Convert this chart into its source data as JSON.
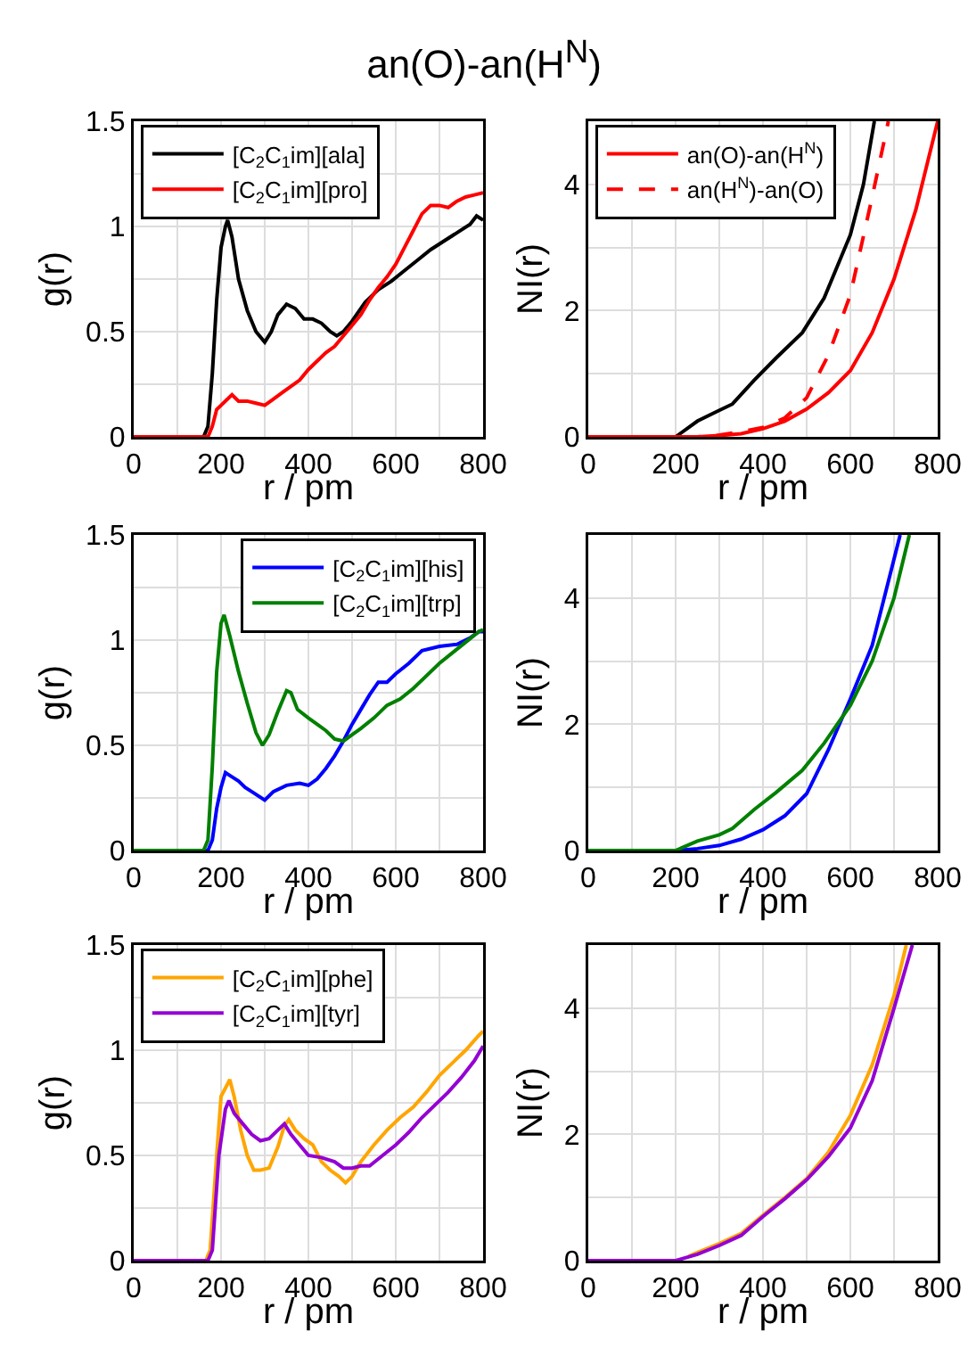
{
  "chart_data": [
    {
      "type": "line",
      "title": "an(O)-an(H$^{N}$)",
      "xlabel": "r / pm",
      "ylabel": "g(r)",
      "xlim": [
        0,
        800
      ],
      "ylim": [
        0,
        1.5
      ],
      "xticks": [
        0,
        {
          "value": 100,
          "label": null
        },
        200,
        {
          "value": 300,
          "label": null
        },
        400,
        {
          "value": 500,
          "label": null
        },
        600,
        {
          "value": 700,
          "label": null
        },
        800
      ],
      "yticks": [
        0,
        {
          "value": 0.25,
          "label": null
        },
        0.5,
        {
          "value": 0.75,
          "label": null
        },
        1,
        {
          "value": 1.25,
          "label": null
        },
        1.5
      ],
      "grid": true,
      "legend": "top left",
      "line_style": "solid",
      "series": [
        {
          "name": "[C$_{2}$C$_{1}$im][ala]",
          "color": "#000000",
          "x": [
            0,
            160,
            170,
            180,
            190,
            200,
            210,
            215,
            225,
            240,
            260,
            280,
            300,
            315,
            330,
            350,
            370,
            390,
            410,
            430,
            450,
            465,
            480,
            500,
            530,
            560,
            590,
            620,
            650,
            680,
            710,
            740,
            770,
            785,
            800
          ],
          "values": [
            0,
            0,
            0.05,
            0.3,
            0.65,
            0.9,
            1.0,
            1.03,
            0.95,
            0.75,
            0.6,
            0.5,
            0.45,
            0.5,
            0.58,
            0.63,
            0.61,
            0.56,
            0.56,
            0.54,
            0.5,
            0.48,
            0.5,
            0.55,
            0.64,
            0.7,
            0.74,
            0.79,
            0.84,
            0.89,
            0.93,
            0.97,
            1.01,
            1.05,
            1.03
          ]
        },
        {
          "name": "[C$_{2}$C$_{1}$im][pro]",
          "color": "#ff0000",
          "x": [
            0,
            170,
            180,
            190,
            200,
            215,
            225,
            240,
            260,
            280,
            300,
            320,
            340,
            360,
            380,
            400,
            420,
            440,
            460,
            480,
            500,
            520,
            540,
            560,
            580,
            600,
            620,
            640,
            660,
            680,
            700,
            720,
            740,
            760,
            780,
            800
          ],
          "values": [
            0,
            0,
            0.05,
            0.13,
            0.15,
            0.18,
            0.2,
            0.17,
            0.17,
            0.16,
            0.15,
            0.18,
            0.21,
            0.24,
            0.27,
            0.32,
            0.36,
            0.4,
            0.43,
            0.48,
            0.53,
            0.58,
            0.65,
            0.71,
            0.76,
            0.82,
            0.9,
            0.98,
            1.06,
            1.1,
            1.1,
            1.09,
            1.12,
            1.14,
            1.15,
            1.16
          ]
        }
      ]
    },
    {
      "type": "line",
      "xlabel": "r / pm",
      "ylabel": "NI(r)",
      "xlim": [
        0,
        800
      ],
      "ylim": [
        0,
        5
      ],
      "xticks": [
        0,
        {
          "value": 100,
          "label": null
        },
        200,
        {
          "value": 300,
          "label": null
        },
        400,
        {
          "value": 500,
          "label": null
        },
        600,
        {
          "value": 700,
          "label": null
        },
        800
      ],
      "yticks": [
        0,
        {
          "value": 1,
          "label": null
        },
        2,
        {
          "value": 3,
          "label": null
        },
        4,
        {
          "value": 5,
          "label": null
        }
      ],
      "grid": true,
      "legend": "top left",
      "line_style": "solid",
      "series": [
        {
          "color": "#000000",
          "x": [
            0,
            200,
            250,
            300,
            330,
            380,
            430,
            490,
            540,
            600,
            630,
            655
          ],
          "values": [
            0,
            0,
            0.25,
            0.42,
            0.52,
            0.9,
            1.25,
            1.65,
            2.2,
            3.2,
            4.0,
            5
          ]
        },
        {
          "name": "an(O)-an(H$^{N}$)",
          "color": "#ff0000",
          "x": [
            0,
            250,
            300,
            350,
            400,
            450,
            500,
            550,
            600,
            650,
            700,
            750,
            800
          ],
          "values": [
            0,
            0,
            0.02,
            0.05,
            0.13,
            0.25,
            0.44,
            0.7,
            1.05,
            1.65,
            2.5,
            3.6,
            5
          ]
        },
        {
          "name": "an(H$^{N}$)-an(O)",
          "color": "#ff0000",
          "line_style": "dashed",
          "x": [
            0,
            250,
            300,
            350,
            400,
            450,
            500,
            550,
            600,
            650,
            687
          ],
          "values": [
            0,
            0,
            0.03,
            0.08,
            0.15,
            0.3,
            0.62,
            1.3,
            2.25,
            3.8,
            5
          ]
        }
      ]
    },
    {
      "type": "line",
      "xlabel": "r / pm",
      "ylabel": "g(r)",
      "xlim": [
        0,
        800
      ],
      "ylim": [
        0,
        1.5
      ],
      "xticks": [
        0,
        {
          "value": 100,
          "label": null
        },
        200,
        {
          "value": 300,
          "label": null
        },
        400,
        {
          "value": 500,
          "label": null
        },
        600,
        {
          "value": 700,
          "label": null
        },
        800
      ],
      "yticks": [
        0,
        {
          "value": 0.25,
          "label": null
        },
        0.5,
        {
          "value": 0.75,
          "label": null
        },
        1,
        {
          "value": 1.25,
          "label": null
        },
        1.5
      ],
      "grid": true,
      "legend": "top right",
      "line_style": "solid",
      "series": [
        {
          "name": "[C$_{2}$C$_{1}$im][his]",
          "color": "#0000ff",
          "x": [
            0,
            170,
            180,
            190,
            200,
            210,
            225,
            240,
            255,
            270,
            300,
            320,
            350,
            380,
            400,
            420,
            440,
            460,
            480,
            500,
            520,
            540,
            560,
            580,
            600,
            630,
            660,
            700,
            740,
            770,
            790,
            800
          ],
          "values": [
            0,
            0,
            0.05,
            0.2,
            0.3,
            0.37,
            0.35,
            0.33,
            0.3,
            0.28,
            0.24,
            0.28,
            0.31,
            0.32,
            0.31,
            0.34,
            0.39,
            0.45,
            0.52,
            0.6,
            0.67,
            0.74,
            0.8,
            0.8,
            0.84,
            0.89,
            0.95,
            0.97,
            0.98,
            1.01,
            1.04,
            1.04
          ]
        },
        {
          "name": "[C$_{2}$C$_{1}$im][trp]",
          "color": "#008000",
          "x": [
            0,
            160,
            170,
            180,
            190,
            200,
            207,
            220,
            240,
            260,
            280,
            295,
            310,
            330,
            350,
            360,
            375,
            400,
            420,
            440,
            460,
            480,
            500,
            520,
            550,
            580,
            610,
            640,
            670,
            700,
            730,
            760,
            790,
            800
          ],
          "values": [
            0,
            0,
            0.05,
            0.4,
            0.85,
            1.08,
            1.12,
            1.02,
            0.85,
            0.7,
            0.56,
            0.5,
            0.55,
            0.66,
            0.76,
            0.75,
            0.67,
            0.63,
            0.6,
            0.57,
            0.53,
            0.52,
            0.55,
            0.58,
            0.63,
            0.69,
            0.72,
            0.77,
            0.83,
            0.89,
            0.94,
            0.99,
            1.04,
            1.05
          ]
        }
      ]
    },
    {
      "type": "line",
      "xlabel": "r / pm",
      "ylabel": "NI(r)",
      "xlim": [
        0,
        800
      ],
      "ylim": [
        0,
        5
      ],
      "xticks": [
        0,
        {
          "value": 100,
          "label": null
        },
        200,
        {
          "value": 300,
          "label": null
        },
        400,
        {
          "value": 500,
          "label": null
        },
        600,
        {
          "value": 700,
          "label": null
        },
        800
      ],
      "yticks": [
        0,
        {
          "value": 1,
          "label": null
        },
        2,
        {
          "value": 3,
          "label": null
        },
        4,
        {
          "value": 5,
          "label": null
        }
      ],
      "grid": true,
      "line_style": "solid",
      "series": [
        {
          "color": "#0000ff",
          "x": [
            0,
            200,
            250,
            300,
            350,
            400,
            450,
            500,
            550,
            600,
            650,
            714
          ],
          "values": [
            0,
            0,
            0.03,
            0.08,
            0.18,
            0.33,
            0.55,
            0.9,
            1.6,
            2.4,
            3.25,
            5
          ]
        },
        {
          "color": "#008000",
          "x": [
            0,
            200,
            250,
            300,
            330,
            380,
            430,
            490,
            540,
            600,
            650,
            700,
            735
          ],
          "values": [
            0,
            0,
            0.15,
            0.25,
            0.35,
            0.65,
            0.92,
            1.27,
            1.7,
            2.3,
            3.0,
            4.0,
            5
          ]
        }
      ]
    },
    {
      "type": "line",
      "xlabel": "r / pm",
      "ylabel": "g(r)",
      "xlim": [
        0,
        800
      ],
      "ylim": [
        0,
        1.5
      ],
      "xticks": [
        0,
        {
          "value": 100,
          "label": null
        },
        200,
        {
          "value": 300,
          "label": null
        },
        400,
        {
          "value": 500,
          "label": null
        },
        600,
        {
          "value": 700,
          "label": null
        },
        800
      ],
      "yticks": [
        0,
        {
          "value": 0.25,
          "label": null
        },
        0.5,
        {
          "value": 0.75,
          "label": null
        },
        1,
        {
          "value": 1.25,
          "label": null
        },
        1.5
      ],
      "grid": true,
      "legend": "top left",
      "line_style": "solid",
      "series": [
        {
          "name": "[C$_{2}$C$_{1}$im][phe]",
          "color": "#ffa500",
          "x": [
            0,
            165,
            175,
            190,
            200,
            210,
            220,
            230,
            245,
            260,
            275,
            290,
            310,
            330,
            345,
            355,
            370,
            390,
            410,
            430,
            450,
            470,
            485,
            500,
            520,
            550,
            580,
            610,
            640,
            670,
            700,
            730,
            760,
            790,
            800
          ],
          "values": [
            0,
            0,
            0.05,
            0.5,
            0.78,
            0.82,
            0.86,
            0.78,
            0.62,
            0.5,
            0.43,
            0.43,
            0.44,
            0.54,
            0.64,
            0.67,
            0.62,
            0.58,
            0.55,
            0.47,
            0.43,
            0.4,
            0.37,
            0.4,
            0.47,
            0.55,
            0.62,
            0.68,
            0.73,
            0.8,
            0.88,
            0.94,
            1.0,
            1.07,
            1.09
          ]
        },
        {
          "name": "[C$_{2}$C$_{1}$im][tyr]",
          "color": "#9400d3",
          "x": [
            0,
            170,
            180,
            195,
            210,
            218,
            230,
            250,
            270,
            290,
            310,
            330,
            345,
            360,
            380,
            400,
            430,
            460,
            480,
            500,
            520,
            540,
            570,
            600,
            630,
            660,
            690,
            720,
            750,
            780,
            800
          ],
          "values": [
            0,
            0,
            0.05,
            0.5,
            0.72,
            0.76,
            0.7,
            0.65,
            0.6,
            0.57,
            0.58,
            0.62,
            0.65,
            0.6,
            0.55,
            0.5,
            0.49,
            0.47,
            0.44,
            0.44,
            0.45,
            0.45,
            0.5,
            0.55,
            0.61,
            0.68,
            0.74,
            0.8,
            0.87,
            0.95,
            1.02
          ]
        }
      ]
    },
    {
      "type": "line",
      "xlabel": "r / pm",
      "ylabel": "NI(r)",
      "xlim": [
        0,
        800
      ],
      "ylim": [
        0,
        5
      ],
      "xticks": [
        0,
        {
          "value": 100,
          "label": null
        },
        200,
        {
          "value": 300,
          "label": null
        },
        400,
        {
          "value": 500,
          "label": null
        },
        600,
        {
          "value": 700,
          "label": null
        },
        800
      ],
      "yticks": [
        0,
        {
          "value": 1,
          "label": null
        },
        2,
        {
          "value": 3,
          "label": null
        },
        4,
        {
          "value": 5,
          "label": null
        }
      ],
      "grid": true,
      "line_style": "solid",
      "series": [
        {
          "color": "#ffa500",
          "x": [
            230,
            250,
            300,
            350,
            400,
            450,
            500,
            550,
            600,
            650,
            700,
            728
          ],
          "values": [
            0.07,
            0.13,
            0.27,
            0.43,
            0.72,
            1.0,
            1.3,
            1.72,
            2.3,
            3.1,
            4.2,
            5
          ]
        },
        {
          "color": "#9400d3",
          "x": [
            0,
            200,
            250,
            300,
            350,
            400,
            450,
            500,
            550,
            600,
            650,
            700,
            742
          ],
          "values": [
            0,
            0,
            0.1,
            0.24,
            0.4,
            0.7,
            0.98,
            1.28,
            1.65,
            2.1,
            2.85,
            4.0,
            5
          ]
        }
      ]
    }
  ]
}
